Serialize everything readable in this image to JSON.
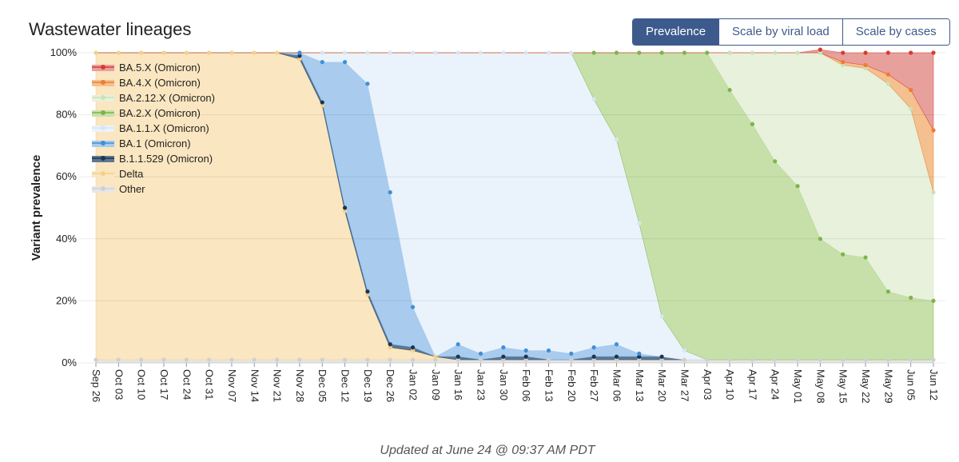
{
  "buttons": [
    "Prevalence",
    "Scale by viral load",
    "Scale by cases"
  ],
  "footer": "Updated at June 24 @ 09:37 AM PDT",
  "chart_data": {
    "type": "stacked_area",
    "title": "Wastewater lineages",
    "y_label": "Variant prevalence",
    "ylim": [
      0,
      100
    ],
    "yticks": [
      {
        "value": 0,
        "label": "0%"
      },
      {
        "value": 20,
        "label": "20%"
      },
      {
        "value": 40,
        "label": "40%"
      },
      {
        "value": 60,
        "label": "60%"
      },
      {
        "value": 80,
        "label": "80%"
      },
      {
        "value": 100,
        "label": "100%"
      }
    ],
    "grid": true,
    "legend": "top-left",
    "categories": [
      "Sep 26",
      "Oct 03",
      "Oct 10",
      "Oct 17",
      "Oct 24",
      "Oct 31",
      "Nov 07",
      "Nov 14",
      "Nov 21",
      "Nov 28",
      "Dec 05",
      "Dec 12",
      "Dec 19",
      "Dec 26",
      "Jan 02",
      "Jan 09",
      "Jan 16",
      "Jan 23",
      "Jan 30",
      "Feb 06",
      "Feb 13",
      "Feb 20",
      "Feb 27",
      "Mar 06",
      "Mar 13",
      "Mar 20",
      "Mar 27",
      "Apr 03",
      "Apr 10",
      "Apr 17",
      "Apr 24",
      "May 01",
      "May 08",
      "May 15",
      "May 22",
      "May 29",
      "Jun 05",
      "Jun 12"
    ],
    "series": [
      {
        "name": "BA.5.X (Omicron)",
        "color": "#e8a09c",
        "marker": "#d93a30",
        "values": [
          0,
          0,
          0,
          0,
          0,
          0,
          0,
          0,
          0,
          0,
          0,
          0,
          0,
          0,
          0,
          0,
          0,
          0,
          0,
          0,
          0,
          0,
          0,
          0,
          0,
          0,
          0,
          0,
          0,
          0,
          0,
          0,
          1,
          3,
          4,
          7,
          12,
          25
        ]
      },
      {
        "name": "BA.4.X (Omicron)",
        "color": "#f4c08f",
        "marker": "#ee7d2e",
        "values": [
          0,
          0,
          0,
          0,
          0,
          0,
          0,
          0,
          0,
          0,
          0,
          0,
          0,
          0,
          0,
          0,
          0,
          0,
          0,
          0,
          0,
          0,
          0,
          0,
          0,
          0,
          0,
          0,
          0,
          0,
          0,
          0,
          0,
          1,
          1,
          3,
          6,
          20
        ]
      },
      {
        "name": "BA.2.12.X (Omicron)",
        "color": "#e7f1dc",
        "marker": "#c9e2b4",
        "values": [
          0,
          0,
          0,
          0,
          0,
          0,
          0,
          0,
          0,
          0,
          0,
          0,
          0,
          0,
          0,
          0,
          0,
          0,
          0,
          0,
          0,
          0,
          0,
          0,
          0,
          0,
          0,
          0,
          12,
          23,
          35,
          43,
          60,
          61,
          61,
          67,
          61,
          35
        ]
      },
      {
        "name": "BA.2.X (Omicron)",
        "color": "#c7e0aa",
        "marker": "#7cb548",
        "values": [
          0,
          0,
          0,
          0,
          0,
          0,
          0,
          0,
          0,
          0,
          0,
          0,
          0,
          0,
          0,
          0,
          0,
          0,
          0,
          0,
          0,
          0,
          15,
          28,
          55,
          85,
          96,
          99,
          87,
          76,
          64,
          56,
          39,
          34,
          33,
          22,
          20,
          19
        ]
      },
      {
        "name": "BA.1.1.X (Omicron)",
        "color": "#eaf3fb",
        "marker": "#d6e6f5",
        "values": [
          0,
          0,
          0,
          0,
          0,
          0,
          0,
          0,
          0,
          0,
          3,
          3,
          10,
          45,
          82,
          98,
          94,
          97,
          95,
          96,
          96,
          97,
          80,
          66,
          42,
          13,
          3,
          0,
          0,
          0,
          0,
          0,
          0,
          0,
          0,
          0,
          0,
          0
        ]
      },
      {
        "name": "BA.1 (Omicron)",
        "color": "#a8cbee",
        "marker": "#3f8fd8",
        "values": [
          0,
          0,
          0,
          0,
          0,
          0,
          0,
          0,
          0,
          1,
          13,
          47,
          67,
          49,
          13,
          0,
          4,
          2,
          3,
          2,
          3,
          2,
          3,
          4,
          1,
          0,
          0,
          0,
          0,
          0,
          0,
          0,
          0,
          0,
          0,
          0,
          0,
          0
        ]
      },
      {
        "name": "B.1.1.529 (Omicron)",
        "color": "#5f7890",
        "marker": "#1c3550",
        "values": [
          0,
          0,
          0,
          0,
          0,
          0,
          0,
          0,
          0,
          1,
          1,
          1,
          1,
          1,
          1,
          0,
          1,
          0,
          1,
          1,
          0,
          0,
          1,
          1,
          1,
          1,
          0,
          0,
          0,
          0,
          0,
          0,
          0,
          0,
          0,
          0,
          0,
          0
        ]
      },
      {
        "name": "Delta",
        "color": "#fae6c0",
        "marker": "#f7cf86",
        "values": [
          99,
          99,
          99,
          99,
          99,
          99,
          99,
          99,
          99,
          97,
          82,
          48,
          21,
          4,
          3,
          1,
          0,
          0,
          0,
          0,
          0,
          0,
          0,
          0,
          0,
          0,
          0,
          0,
          0,
          0,
          0,
          0,
          0,
          0,
          0,
          0,
          0,
          0
        ]
      },
      {
        "name": "Other",
        "color": "#e6e6e6",
        "marker": "#d0d0d0",
        "values": [
          1,
          1,
          1,
          1,
          1,
          1,
          1,
          1,
          1,
          1,
          1,
          1,
          1,
          1,
          1,
          1,
          1,
          1,
          1,
          1,
          1,
          1,
          1,
          1,
          1,
          1,
          1,
          1,
          1,
          1,
          1,
          1,
          1,
          1,
          1,
          1,
          1,
          1
        ]
      }
    ]
  }
}
